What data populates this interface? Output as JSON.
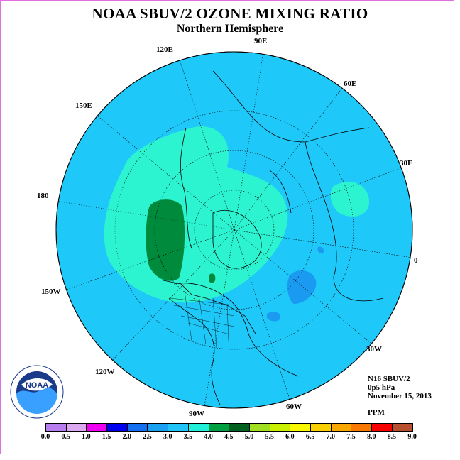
{
  "title": "NOAA SBUV/2 OZONE MIXING RATIO",
  "subtitle": "Northern Hemisphere",
  "longitude_labels": [
    "90E",
    "60E",
    "30E",
    "0",
    "30W",
    "60W",
    "90W",
    "120W",
    "150W",
    "180",
    "150E",
    "120E"
  ],
  "info": {
    "instrument": "N16 SBUV/2",
    "level": "0p5 hPa",
    "date": "November 15, 2013",
    "units": "PPM"
  },
  "colorbar": {
    "ticks": [
      "0.0",
      "0.5",
      "1.0",
      "1.5",
      "2.0",
      "2.5",
      "3.0",
      "3.5",
      "4.0",
      "4.5",
      "5.0",
      "5.5",
      "6.0",
      "6.5",
      "7.0",
      "7.5",
      "8.0",
      "8.5",
      "9.0"
    ],
    "colors": [
      "#b87ef0",
      "#dca8f0",
      "#f000f0",
      "#0000f0",
      "#1470f0",
      "#1aa0f0",
      "#20c4f8",
      "#20f0d8",
      "#00a040",
      "#006020",
      "#a0e020",
      "#c8f000",
      "#f8f800",
      "#f8d000",
      "#f8a800",
      "#f87800",
      "#f80000",
      "#b85030"
    ]
  },
  "map_colors": {
    "background": "#1ec8f8",
    "band_3_5": "#2cf4d0",
    "band_4_0": "#20f0d8",
    "band_4_5": "#008a3c",
    "band_2_5": "#1a9af0",
    "coast": "#000000"
  }
}
